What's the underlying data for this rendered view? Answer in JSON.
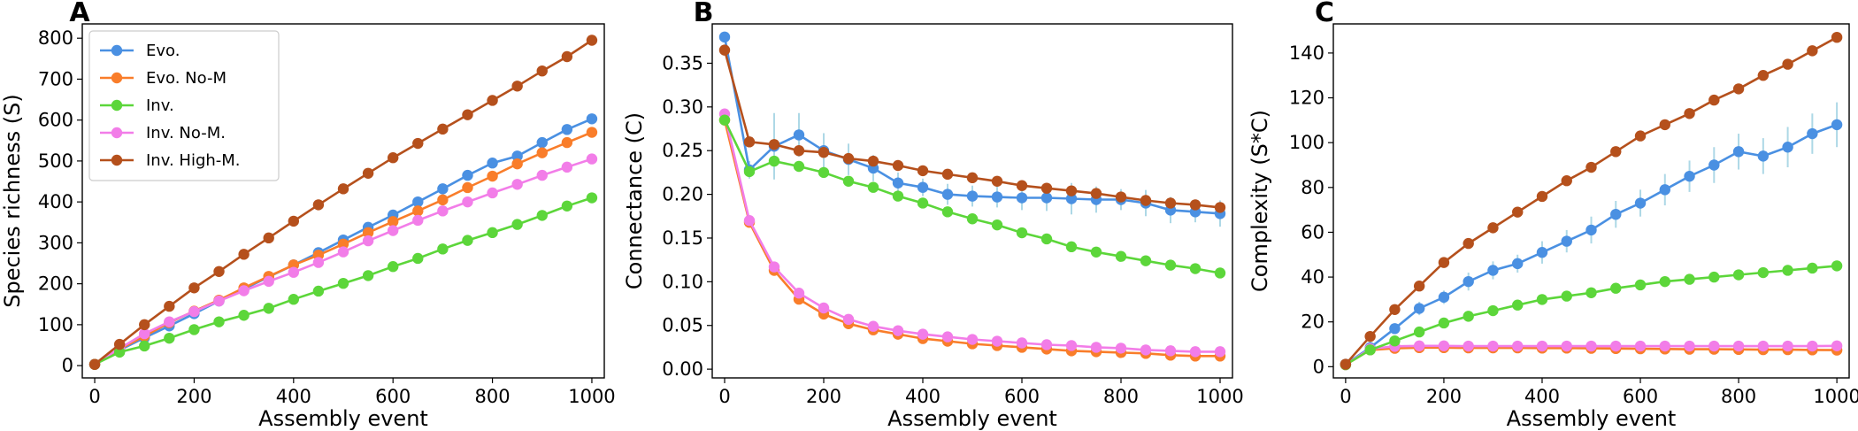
{
  "colors": {
    "Evo.": "#4a90e2",
    "Evo. No-M": "#f97d2a",
    "Inv.": "#5cd63a",
    "Inv. No-M.": "#f27de8",
    "Inv. High-M.": "#b5501c",
    "error_bar": "#add8e6"
  },
  "chart_data": [
    {
      "type": "line",
      "panel_label": "A",
      "xlabel": "Assembly event",
      "ylabel": "Species richness (S)",
      "xlim": [
        -25,
        1025
      ],
      "ylim": [
        -30,
        835
      ],
      "xticks": [
        0,
        200,
        400,
        600,
        800,
        1000
      ],
      "yticks": [
        0,
        100,
        200,
        300,
        400,
        500,
        600,
        700,
        800
      ],
      "legend_position": "top-left",
      "x": [
        0,
        50,
        100,
        150,
        200,
        250,
        300,
        350,
        400,
        450,
        500,
        550,
        600,
        650,
        700,
        750,
        800,
        850,
        900,
        950,
        1000
      ],
      "series": [
        {
          "name": "Evo.",
          "values": [
            3,
            38,
            68,
            97,
            127,
            158,
            187,
            217,
            246,
            276,
            307,
            338,
            368,
            400,
            432,
            465,
            495,
            512,
            545,
            577,
            603
          ],
          "err": []
        },
        {
          "name": "Evo. No-M",
          "values": [
            3,
            40,
            72,
            105,
            133,
            160,
            190,
            218,
            246,
            270,
            297,
            325,
            352,
            378,
            405,
            435,
            463,
            493,
            520,
            545,
            570
          ],
          "err": []
        },
        {
          "name": "Inv.",
          "values": [
            3,
            33,
            48,
            67,
            88,
            107,
            123,
            140,
            162,
            182,
            201,
            220,
            242,
            262,
            285,
            306,
            325,
            345,
            367,
            390,
            410
          ],
          "err": []
        },
        {
          "name": "Inv. No-M.",
          "values": [
            3,
            42,
            78,
            107,
            132,
            158,
            183,
            206,
            228,
            252,
            278,
            305,
            330,
            355,
            378,
            400,
            422,
            443,
            465,
            485,
            505
          ],
          "err": []
        },
        {
          "name": "Inv. High-M.",
          "values": [
            3,
            52,
            100,
            145,
            190,
            230,
            272,
            312,
            353,
            393,
            432,
            470,
            508,
            543,
            578,
            613,
            648,
            683,
            720,
            755,
            795
          ],
          "err": []
        }
      ]
    },
    {
      "type": "line",
      "panel_label": "B",
      "xlabel": "Assembly event",
      "ylabel": "Connectance (C)",
      "xlim": [
        -25,
        1025
      ],
      "ylim": [
        -0.01,
        0.395
      ],
      "xticks": [
        0,
        200,
        400,
        600,
        800,
        1000
      ],
      "yticks": [
        0.0,
        0.05,
        0.1,
        0.15,
        0.2,
        0.25,
        0.3,
        0.35
      ],
      "x": [
        0,
        50,
        100,
        150,
        200,
        250,
        300,
        350,
        400,
        450,
        500,
        550,
        600,
        650,
        700,
        750,
        800,
        850,
        900,
        950,
        1000
      ],
      "series": [
        {
          "name": "Evo.",
          "values": [
            0.38,
            0.228,
            0.255,
            0.268,
            0.25,
            0.24,
            0.23,
            0.213,
            0.208,
            0.2,
            0.198,
            0.197,
            0.196,
            0.196,
            0.195,
            0.194,
            0.194,
            0.19,
            0.182,
            0.18,
            0.178
          ],
          "err": [
            0,
            0.01,
            0.038,
            0.025,
            0.02,
            0.018,
            0.015,
            0.012,
            0.01,
            0.012,
            0.012,
            0.012,
            0.014,
            0.015,
            0.018,
            0.015,
            0.012,
            0.015,
            0.015,
            0.012,
            0.015
          ]
        },
        {
          "name": "Evo. No-M",
          "values": [
            0.285,
            0.168,
            0.113,
            0.08,
            0.063,
            0.052,
            0.045,
            0.04,
            0.035,
            0.032,
            0.029,
            0.027,
            0.025,
            0.023,
            0.021,
            0.02,
            0.019,
            0.018,
            0.016,
            0.015,
            0.015
          ],
          "err": []
        },
        {
          "name": "Inv.",
          "values": [
            0.285,
            0.226,
            0.238,
            0.232,
            0.225,
            0.215,
            0.208,
            0.198,
            0.19,
            0.18,
            0.172,
            0.165,
            0.156,
            0.149,
            0.14,
            0.134,
            0.129,
            0.124,
            0.119,
            0.115,
            0.11
          ],
          "err": []
        },
        {
          "name": "Inv. No-M.",
          "values": [
            0.292,
            0.17,
            0.117,
            0.087,
            0.07,
            0.057,
            0.049,
            0.044,
            0.04,
            0.037,
            0.034,
            0.032,
            0.03,
            0.028,
            0.027,
            0.025,
            0.024,
            0.022,
            0.021,
            0.02,
            0.02
          ],
          "err": []
        },
        {
          "name": "Inv. High-M.",
          "values": [
            0.365,
            0.26,
            0.257,
            0.25,
            0.248,
            0.241,
            0.238,
            0.233,
            0.227,
            0.223,
            0.219,
            0.215,
            0.21,
            0.207,
            0.204,
            0.201,
            0.197,
            0.193,
            0.19,
            0.188,
            0.185
          ],
          "err": []
        }
      ]
    },
    {
      "type": "line",
      "panel_label": "C",
      "xlabel": "Assembly event",
      "ylabel": "Complexity (S*C)",
      "xlim": [
        -25,
        1025
      ],
      "ylim": [
        -5,
        153
      ],
      "xticks": [
        0,
        200,
        400,
        600,
        800,
        1000
      ],
      "yticks": [
        0,
        20,
        40,
        60,
        80,
        100,
        120,
        140
      ],
      "x": [
        0,
        50,
        100,
        150,
        200,
        250,
        300,
        350,
        400,
        450,
        500,
        550,
        600,
        650,
        700,
        750,
        800,
        850,
        900,
        950,
        1000
      ],
      "series": [
        {
          "name": "Evo.",
          "values": [
            1.1,
            8.5,
            17,
            26,
            31,
            38,
            43,
            46,
            51,
            56,
            61,
            68,
            73,
            79,
            85,
            90,
            96,
            94,
            98,
            104,
            108
          ],
          "err": [
            0,
            1,
            2,
            3,
            3,
            4,
            4,
            4,
            5,
            5,
            6,
            6,
            6,
            7,
            7,
            8,
            8,
            8,
            9,
            9,
            10
          ]
        },
        {
          "name": "Evo. No-M",
          "values": [
            0.9,
            7.5,
            8.2,
            8.5,
            8.5,
            8.4,
            8.4,
            8.4,
            8.3,
            8.3,
            8.2,
            8.1,
            8.0,
            7.9,
            7.8,
            7.8,
            7.7,
            7.6,
            7.6,
            7.5,
            7.4
          ],
          "err": []
        },
        {
          "name": "Inv.",
          "values": [
            0.9,
            7.5,
            11.5,
            15.5,
            19.5,
            22.5,
            25,
            27.5,
            30,
            31.5,
            33,
            35,
            36.5,
            38,
            39,
            40,
            41,
            42,
            43,
            44,
            45
          ],
          "err": []
        },
        {
          "name": "Inv. No-M.",
          "values": [
            0.9,
            8.0,
            9.1,
            9.3,
            9.3,
            9.2,
            9.2,
            9.2,
            9.2,
            9.2,
            9.2,
            9.2,
            9.2,
            9.2,
            9.2,
            9.2,
            9.2,
            9.2,
            9.2,
            9.2,
            9.3
          ],
          "err": []
        },
        {
          "name": "Inv. High-M.",
          "values": [
            1.1,
            13.5,
            25.5,
            36,
            46.5,
            55,
            62,
            69,
            76,
            83,
            89,
            96,
            103,
            108,
            113,
            119,
            124,
            130,
            135,
            141,
            147
          ],
          "err": []
        }
      ]
    }
  ]
}
